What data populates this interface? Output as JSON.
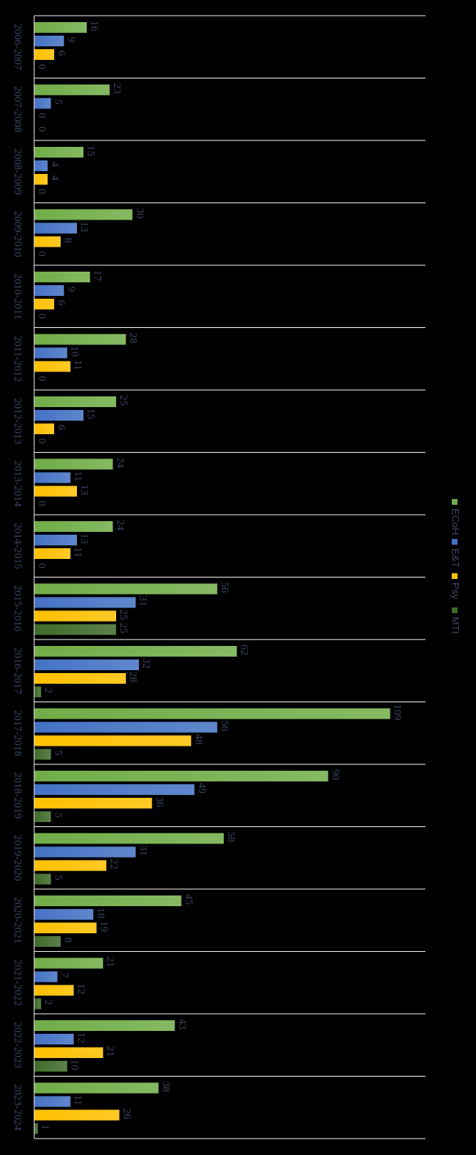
{
  "chart_data": {
    "type": "bar",
    "orientation": "horizontal",
    "categories": [
      "2006-2007",
      "2007-2008",
      "2008-2009",
      "2009-2010",
      "2010-2011",
      "2011-2012",
      "2012-2013",
      "2013-2014",
      "2014-2015",
      "2015-2016",
      "2016-2017",
      "2017-2018",
      "2018-2019",
      "2019-2020",
      "2020-2021",
      "2021-2022",
      "2022-2023",
      "2023-2024"
    ],
    "series": [
      {
        "name": "ECoH",
        "color": "#70ad47",
        "values": [
          16,
          23,
          15,
          30,
          17,
          28,
          25,
          24,
          24,
          56,
          62,
          109,
          90,
          58,
          45,
          21,
          43,
          38
        ]
      },
      {
        "name": "E&T",
        "color": "#4472c4",
        "values": [
          9,
          5,
          4,
          13,
          9,
          10,
          15,
          11,
          13,
          31,
          32,
          56,
          49,
          31,
          18,
          7,
          12,
          11
        ]
      },
      {
        "name": "Psy",
        "color": "#ffc000",
        "values": [
          6,
          0,
          4,
          8,
          6,
          11,
          6,
          13,
          11,
          25,
          28,
          48,
          36,
          22,
          19,
          12,
          21,
          26
        ]
      },
      {
        "name": "MTI",
        "color": "#3f6b2a",
        "values": [
          0,
          0,
          0,
          0,
          0,
          0,
          0,
          0,
          0,
          25,
          2,
          5,
          5,
          5,
          8,
          2,
          10,
          1
        ]
      }
    ],
    "value_labels": [
      [
        "16",
        "9",
        "6",
        "0"
      ],
      [
        "23",
        "5",
        "0",
        "0"
      ],
      [
        "15",
        "4",
        "4",
        "0"
      ],
      [
        "30",
        "13",
        "8",
        "0"
      ],
      [
        "17",
        "9",
        "6",
        "0"
      ],
      [
        "28",
        "10",
        "11",
        "0"
      ],
      [
        "25",
        "15",
        "6",
        "0"
      ],
      [
        "24",
        "11",
        "13",
        "0"
      ],
      [
        "24",
        "13",
        "11",
        "0"
      ],
      [
        "56",
        "31",
        "25",
        "25"
      ],
      [
        "62",
        "32",
        "28",
        "2"
      ],
      [
        "109",
        "56",
        "48",
        "5"
      ],
      [
        "90",
        "49",
        "36",
        "5"
      ],
      [
        "58",
        "31",
        "22",
        "5"
      ],
      [
        "45",
        "18",
        "19",
        "8"
      ],
      [
        "21",
        "7",
        "12",
        "2"
      ],
      [
        "43",
        "12",
        "21",
        "10"
      ],
      [
        "38",
        "11",
        "26",
        "1"
      ]
    ],
    "xlim": [
      0,
      120
    ],
    "grid": true,
    "legend_position": "right",
    "title": "",
    "xlabel": "",
    "ylabel": ""
  }
}
